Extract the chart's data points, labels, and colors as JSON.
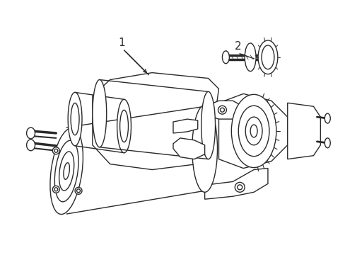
{
  "background_color": "#ffffff",
  "line_color": "#2a2a2a",
  "line_width": 1.0,
  "label_1": "1",
  "label_2": "2",
  "figsize": [
    4.89,
    3.6
  ],
  "dpi": 100
}
